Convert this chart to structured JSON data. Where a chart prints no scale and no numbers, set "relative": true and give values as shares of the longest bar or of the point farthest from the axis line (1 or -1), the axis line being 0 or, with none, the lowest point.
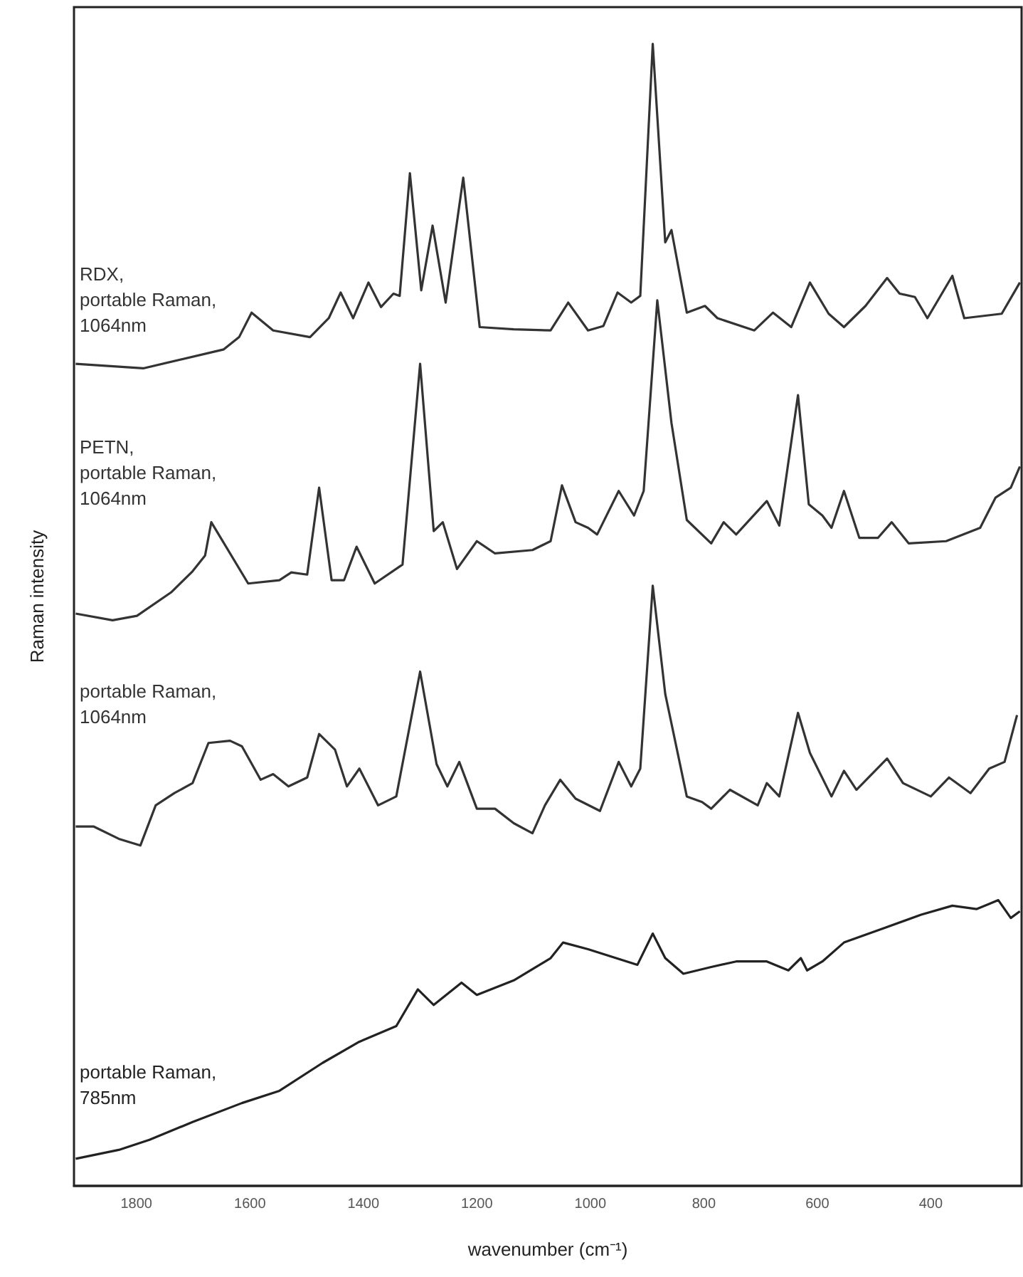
{
  "chart_data": {
    "type": "line",
    "relative": true,
    "xlabel": "wavenumber (cm⁻¹)",
    "ylabel": "Raman intensity",
    "xlim": [
      1910,
      240
    ],
    "xticks": [
      1800,
      1600,
      1400,
      1200,
      1000,
      800,
      600,
      400
    ],
    "grid": false,
    "legend": false,
    "marker": "none",
    "line_style": "solid",
    "series": [
      {
        "name": "RDX,\nportable Raman,\n1064nm",
        "color": "#333333",
        "x": [
          1907,
          1788,
          1646,
          1619,
          1597,
          1559,
          1494,
          1461,
          1440,
          1418,
          1391,
          1369,
          1347,
          1336,
          1318,
          1298,
          1278,
          1255,
          1224,
          1195,
          1135,
          1070,
          1039,
          1004,
          977,
          952,
          928,
          912,
          890,
          868,
          857,
          830,
          798,
          776,
          711,
          678,
          646,
          613,
          580,
          553,
          515,
          477,
          455,
          428,
          406,
          362,
          341,
          275,
          243
        ],
        "values": [
          0.713,
          0.709,
          0.726,
          0.737,
          0.759,
          0.743,
          0.737,
          0.754,
          0.777,
          0.754,
          0.786,
          0.764,
          0.776,
          0.774,
          0.884,
          0.779,
          0.837,
          0.768,
          0.88,
          0.746,
          0.744,
          0.743,
          0.768,
          0.743,
          0.747,
          0.777,
          0.768,
          0.774,
          1,
          0.822,
          0.833,
          0.759,
          0.765,
          0.754,
          0.743,
          0.759,
          0.746,
          0.786,
          0.758,
          0.746,
          0.765,
          0.79,
          0.776,
          0.773,
          0.754,
          0.792,
          0.754,
          0.758,
          0.786
        ]
      },
      {
        "name": "PETN,\nportable Raman,\n1064nm",
        "color": "#333333",
        "x": [
          1907,
          1842,
          1799,
          1739,
          1701,
          1679,
          1668,
          1603,
          1548,
          1527,
          1499,
          1478,
          1456,
          1434,
          1412,
          1380,
          1331,
          1300,
          1276,
          1260,
          1235,
          1200,
          1168,
          1102,
          1070,
          1050,
          1026,
          1004,
          988,
          950,
          923,
          906,
          882,
          857,
          830,
          787,
          765,
          743,
          689,
          667,
          634,
          615,
          591,
          575,
          553,
          526,
          493,
          469,
          439,
          373,
          313,
          286,
          259,
          243
        ],
        "values": [
          0.489,
          0.483,
          0.487,
          0.508,
          0.527,
          0.541,
          0.571,
          0.516,
          0.519,
          0.526,
          0.524,
          0.602,
          0.519,
          0.519,
          0.549,
          0.516,
          0.533,
          0.713,
          0.563,
          0.571,
          0.529,
          0.554,
          0.543,
          0.546,
          0.554,
          0.604,
          0.571,
          0.566,
          0.56,
          0.599,
          0.577,
          0.599,
          0.77,
          0.66,
          0.573,
          0.552,
          0.571,
          0.56,
          0.59,
          0.568,
          0.685,
          0.587,
          0.577,
          0.566,
          0.599,
          0.557,
          0.557,
          0.571,
          0.552,
          0.554,
          0.566,
          0.593,
          0.602,
          0.621
        ]
      },
      {
        "name": "portable Raman,\n1064nm",
        "color": "#333333",
        "x": [
          1907,
          1875,
          1831,
          1793,
          1766,
          1733,
          1701,
          1673,
          1635,
          1614,
          1581,
          1559,
          1532,
          1499,
          1478,
          1450,
          1429,
          1407,
          1374,
          1342,
          1300,
          1271,
          1252,
          1231,
          1200,
          1168,
          1135,
          1102,
          1080,
          1053,
          1026,
          983,
          950,
          928,
          912,
          890,
          868,
          830,
          803,
          787,
          754,
          705,
          689,
          667,
          634,
          613,
          575,
          553,
          531,
          477,
          449,
          400,
          368,
          330,
          297,
          270,
          248
        ],
        "values": [
          0.298,
          0.298,
          0.287,
          0.281,
          0.317,
          0.328,
          0.337,
          0.373,
          0.375,
          0.37,
          0.34,
          0.345,
          0.334,
          0.342,
          0.381,
          0.367,
          0.334,
          0.35,
          0.317,
          0.325,
          0.437,
          0.354,
          0.334,
          0.356,
          0.314,
          0.314,
          0.301,
          0.292,
          0.317,
          0.34,
          0.323,
          0.312,
          0.356,
          0.334,
          0.35,
          0.514,
          0.417,
          0.325,
          0.32,
          0.314,
          0.331,
          0.317,
          0.337,
          0.325,
          0.4,
          0.364,
          0.325,
          0.348,
          0.331,
          0.359,
          0.337,
          0.325,
          0.342,
          0.328,
          0.35,
          0.356,
          0.398
        ]
      },
      {
        "name": "portable Raman,\n785nm",
        "color": "#222222",
        "x": [
          1907,
          1831,
          1777,
          1701,
          1614,
          1548,
          1472,
          1407,
          1342,
          1304,
          1276,
          1227,
          1200,
          1135,
          1070,
          1048,
          1004,
          917,
          890,
          868,
          836,
          787,
          743,
          689,
          651,
          629,
          618,
          591,
          553,
          482,
          417,
          362,
          319,
          281,
          259,
          243
        ],
        "values": [
          0,
          0.008,
          0.017,
          0.033,
          0.05,
          0.061,
          0.086,
          0.105,
          0.119,
          0.152,
          0.138,
          0.158,
          0.147,
          0.16,
          0.18,
          0.194,
          0.188,
          0.174,
          0.202,
          0.18,
          0.166,
          0.172,
          0.177,
          0.177,
          0.169,
          0.18,
          0.169,
          0.177,
          0.194,
          0.207,
          0.219,
          0.227,
          0.224,
          0.232,
          0.216,
          0.222
        ]
      }
    ]
  }
}
